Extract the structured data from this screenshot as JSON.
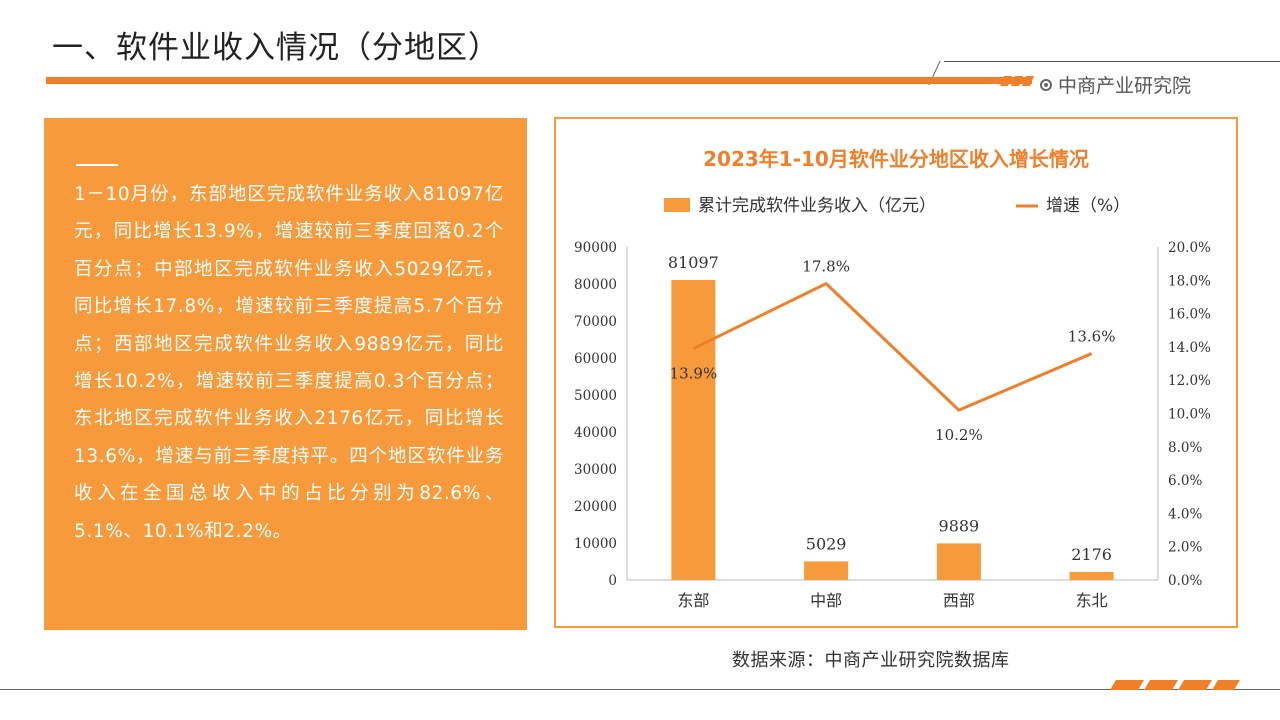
{
  "header": {
    "title": "一、软件业收入情况（分地区）",
    "brand": "中商产业研究院"
  },
  "text_panel": {
    "paragraph": "1－10月份，东部地区完成软件业务收入81097亿元，同比增长13.9%，增速较前三季度回落0.2个百分点；中部地区完成软件业务收入5029亿元，同比增长17.8%，增速较前三季度提高5.7个百分点；西部地区完成软件业务收入9889亿元，同比增长10.2%，增速较前三季度提高0.3个百分点；东北地区完成软件业务收入2176亿元，同比增长13.6%，增速与前三季度持平。四个地区软件业务收入在全国总收入中的占比分别为82.6%、5.1%、10.1%和2.2%。"
  },
  "source": "数据来源：中商产业研究院数据库",
  "colors": {
    "accent": "#f07f2a",
    "panel": "#f79a3c",
    "bar": "#f79a3c",
    "line": "#f07f2a"
  },
  "chart_data": {
    "type": "bar",
    "title": "2023年1-10月软件业分地区收入增长情况",
    "categories": [
      "东部",
      "中部",
      "西部",
      "东北"
    ],
    "series": [
      {
        "name": "累计完成软件业务收入（亿元）",
        "type": "bar",
        "axis": "left",
        "values": [
          81097,
          5029,
          9889,
          2176
        ]
      },
      {
        "name": "增速（%）",
        "type": "line",
        "axis": "right",
        "values": [
          13.9,
          17.8,
          10.2,
          13.6
        ]
      }
    ],
    "ylim_left": [
      0,
      90000
    ],
    "ylim_right": [
      0,
      20
    ],
    "yticks_left": [
      "0",
      "10000",
      "20000",
      "30000",
      "40000",
      "50000",
      "60000",
      "70000",
      "80000",
      "90000"
    ],
    "yticks_right": [
      "0.0%",
      "2.0%",
      "4.0%",
      "6.0%",
      "8.0%",
      "10.0%",
      "12.0%",
      "14.0%",
      "16.0%",
      "18.0%",
      "20.0%"
    ],
    "bar_labels": [
      "81097",
      "5029",
      "9889",
      "2176"
    ],
    "line_labels": [
      "13.9%",
      "17.8%",
      "10.2%",
      "13.6%"
    ],
    "legend_position": "top",
    "grid": false
  }
}
